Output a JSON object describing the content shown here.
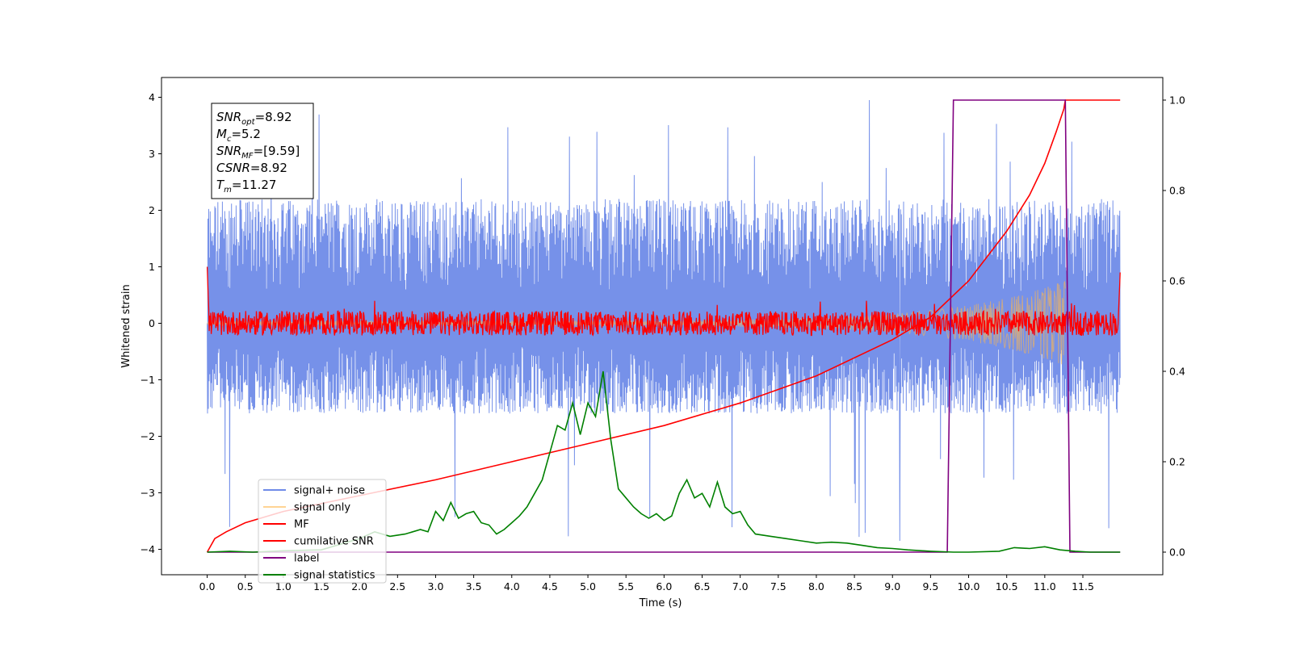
{
  "chart_data": {
    "type": "line",
    "title": "",
    "xlabel": "Time (s)",
    "ylabel": "Whitened strain",
    "xlim": [
      -0.6,
      12.55
    ],
    "ylim": [
      -4.45,
      4.35
    ],
    "y2lim": [
      -0.05,
      1.05
    ],
    "x_ticks": [
      "0.0",
      "0.5",
      "1.0",
      "1.5",
      "2.0",
      "2.5",
      "3.0",
      "3.5",
      "4.0",
      "4.5",
      "5.0",
      "5.5",
      "6.0",
      "6.5",
      "7.0",
      "7.5",
      "8.0",
      "8.5",
      "9.0",
      "9.5",
      "10.0",
      "10.5",
      "11.0",
      "11.5"
    ],
    "y_ticks": [
      "4",
      "3",
      "2",
      "1",
      "0",
      "−1",
      "−2",
      "−3",
      "−4"
    ],
    "y2_ticks": [
      "1.0",
      "0.8",
      "0.6",
      "0.4",
      "0.2",
      "0.0"
    ],
    "grid": false,
    "legend_position": "lower-left",
    "annotation": {
      "lines": [
        {
          "sym": "SNR",
          "sub": "opt",
          "val": "=8.92"
        },
        {
          "sym": "M",
          "sub": "c",
          "val": "=5.2"
        },
        {
          "sym": "SNR",
          "sub": "MF",
          "val": "=[9.59]"
        },
        {
          "sym": "CSNR",
          "sub": "",
          "val": "=8.92"
        },
        {
          "sym": "T",
          "sub": "m",
          "val": "=11.27"
        }
      ]
    },
    "series": [
      {
        "name": "signal+ noise",
        "color": "#6f8be8",
        "axis": "left",
        "kind": "noise",
        "x_range": [
          0.0,
          11.99
        ],
        "band": [
          -1.6,
          2.2
        ],
        "peak_max": 3.95,
        "peak_min": -3.85
      },
      {
        "name": "signal only",
        "color": "#ffb84d",
        "axis": "left",
        "kind": "chirp",
        "x_range": [
          0.0,
          11.27
        ],
        "amplitude_end": 0.7
      },
      {
        "name": "MF",
        "color": "#ff0000",
        "axis": "left",
        "kind": "noise",
        "x_range": [
          0.0,
          11.99
        ],
        "band": [
          -0.12,
          0.15
        ],
        "edge_peaks": [
          [
            0.0,
            1.0
          ],
          [
            11.99,
            0.9
          ]
        ]
      },
      {
        "name": "cumilative SNR",
        "color": "#ff0000",
        "axis": "right",
        "x": [
          0.0,
          0.1,
          0.25,
          0.5,
          1.0,
          2.0,
          3.0,
          4.0,
          5.0,
          6.0,
          7.0,
          8.0,
          9.0,
          9.5,
          10.0,
          10.5,
          10.8,
          11.0,
          11.15,
          11.25,
          11.27,
          11.3,
          11.99
        ],
        "y": [
          0.0,
          0.03,
          0.045,
          0.065,
          0.09,
          0.125,
          0.16,
          0.2,
          0.24,
          0.28,
          0.33,
          0.39,
          0.47,
          0.52,
          0.6,
          0.71,
          0.79,
          0.86,
          0.93,
          0.98,
          1.0,
          1.0,
          1.0
        ]
      },
      {
        "name": "label",
        "color": "#800080",
        "axis": "right",
        "x": [
          0.0,
          9.72,
          9.8,
          11.27,
          11.33,
          11.99
        ],
        "y": [
          0.0,
          0.0,
          1.0,
          1.0,
          0.0,
          0.0
        ]
      },
      {
        "name": "signal statistics",
        "color": "#008000",
        "axis": "right",
        "x": [
          0.0,
          0.3,
          0.6,
          1.0,
          1.5,
          2.0,
          2.2,
          2.4,
          2.6,
          2.8,
          2.9,
          3.0,
          3.1,
          3.2,
          3.3,
          3.4,
          3.5,
          3.6,
          3.7,
          3.8,
          3.9,
          4.0,
          4.1,
          4.2,
          4.3,
          4.4,
          4.5,
          4.6,
          4.7,
          4.8,
          4.9,
          5.0,
          5.1,
          5.2,
          5.3,
          5.4,
          5.5,
          5.6,
          5.7,
          5.8,
          5.9,
          6.0,
          6.1,
          6.2,
          6.3,
          6.4,
          6.5,
          6.6,
          6.7,
          6.8,
          6.9,
          7.0,
          7.1,
          7.2,
          7.4,
          7.6,
          7.8,
          8.0,
          8.2,
          8.4,
          8.6,
          8.8,
          9.0,
          9.2,
          9.5,
          9.8,
          10.0,
          10.4,
          10.6,
          10.8,
          11.0,
          11.2,
          11.4,
          11.6,
          11.99
        ],
        "y": [
          0.0,
          0.002,
          0.0,
          0.003,
          0.005,
          0.03,
          0.045,
          0.035,
          0.04,
          0.05,
          0.045,
          0.09,
          0.07,
          0.11,
          0.075,
          0.085,
          0.09,
          0.065,
          0.06,
          0.04,
          0.05,
          0.065,
          0.08,
          0.1,
          0.13,
          0.16,
          0.22,
          0.28,
          0.27,
          0.33,
          0.26,
          0.33,
          0.3,
          0.4,
          0.25,
          0.14,
          0.12,
          0.1,
          0.085,
          0.075,
          0.085,
          0.07,
          0.08,
          0.13,
          0.16,
          0.12,
          0.13,
          0.1,
          0.155,
          0.1,
          0.085,
          0.09,
          0.06,
          0.04,
          0.035,
          0.03,
          0.025,
          0.02,
          0.022,
          0.02,
          0.015,
          0.01,
          0.008,
          0.005,
          0.002,
          0.0,
          0.0,
          0.002,
          0.01,
          0.008,
          0.012,
          0.005,
          0.002,
          0.0,
          0.0
        ]
      }
    ]
  }
}
